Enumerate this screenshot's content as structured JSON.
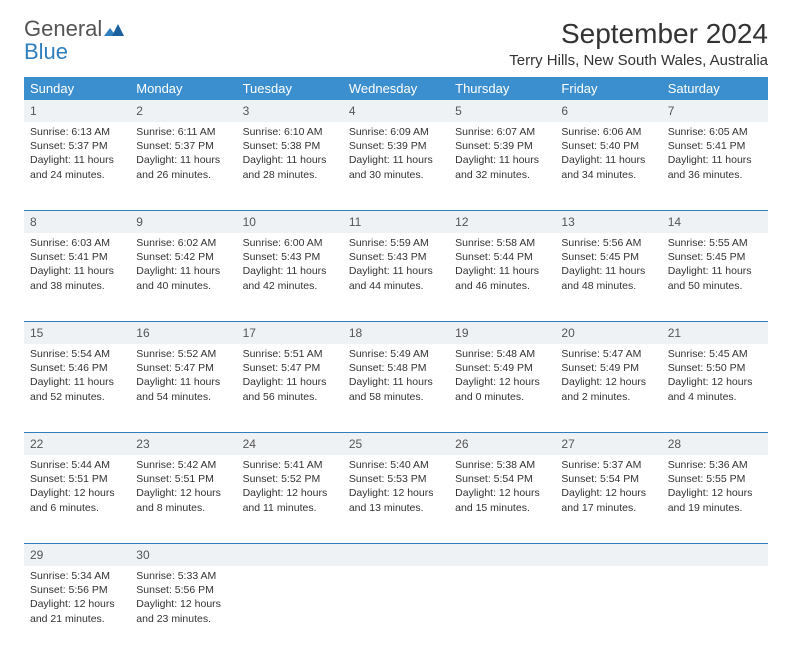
{
  "brand": {
    "name1": "General",
    "name2": "Blue"
  },
  "title": "September 2024",
  "location": "Terry Hills, New South Wales, Australia",
  "colors": {
    "header_bg": "#3c8fcf",
    "divider": "#2f7fbf",
    "daynum_bg": "#eef2f5",
    "text": "#333333",
    "brand_blue": "#2f7fbf"
  },
  "dayNames": [
    "Sunday",
    "Monday",
    "Tuesday",
    "Wednesday",
    "Thursday",
    "Friday",
    "Saturday"
  ],
  "weeks": [
    [
      {
        "n": "1",
        "sr": "Sunrise: 6:13 AM",
        "ss": "Sunset: 5:37 PM",
        "d1": "Daylight: 11 hours",
        "d2": "and 24 minutes."
      },
      {
        "n": "2",
        "sr": "Sunrise: 6:11 AM",
        "ss": "Sunset: 5:37 PM",
        "d1": "Daylight: 11 hours",
        "d2": "and 26 minutes."
      },
      {
        "n": "3",
        "sr": "Sunrise: 6:10 AM",
        "ss": "Sunset: 5:38 PM",
        "d1": "Daylight: 11 hours",
        "d2": "and 28 minutes."
      },
      {
        "n": "4",
        "sr": "Sunrise: 6:09 AM",
        "ss": "Sunset: 5:39 PM",
        "d1": "Daylight: 11 hours",
        "d2": "and 30 minutes."
      },
      {
        "n": "5",
        "sr": "Sunrise: 6:07 AM",
        "ss": "Sunset: 5:39 PM",
        "d1": "Daylight: 11 hours",
        "d2": "and 32 minutes."
      },
      {
        "n": "6",
        "sr": "Sunrise: 6:06 AM",
        "ss": "Sunset: 5:40 PM",
        "d1": "Daylight: 11 hours",
        "d2": "and 34 minutes."
      },
      {
        "n": "7",
        "sr": "Sunrise: 6:05 AM",
        "ss": "Sunset: 5:41 PM",
        "d1": "Daylight: 11 hours",
        "d2": "and 36 minutes."
      }
    ],
    [
      {
        "n": "8",
        "sr": "Sunrise: 6:03 AM",
        "ss": "Sunset: 5:41 PM",
        "d1": "Daylight: 11 hours",
        "d2": "and 38 minutes."
      },
      {
        "n": "9",
        "sr": "Sunrise: 6:02 AM",
        "ss": "Sunset: 5:42 PM",
        "d1": "Daylight: 11 hours",
        "d2": "and 40 minutes."
      },
      {
        "n": "10",
        "sr": "Sunrise: 6:00 AM",
        "ss": "Sunset: 5:43 PM",
        "d1": "Daylight: 11 hours",
        "d2": "and 42 minutes."
      },
      {
        "n": "11",
        "sr": "Sunrise: 5:59 AM",
        "ss": "Sunset: 5:43 PM",
        "d1": "Daylight: 11 hours",
        "d2": "and 44 minutes."
      },
      {
        "n": "12",
        "sr": "Sunrise: 5:58 AM",
        "ss": "Sunset: 5:44 PM",
        "d1": "Daylight: 11 hours",
        "d2": "and 46 minutes."
      },
      {
        "n": "13",
        "sr": "Sunrise: 5:56 AM",
        "ss": "Sunset: 5:45 PM",
        "d1": "Daylight: 11 hours",
        "d2": "and 48 minutes."
      },
      {
        "n": "14",
        "sr": "Sunrise: 5:55 AM",
        "ss": "Sunset: 5:45 PM",
        "d1": "Daylight: 11 hours",
        "d2": "and 50 minutes."
      }
    ],
    [
      {
        "n": "15",
        "sr": "Sunrise: 5:54 AM",
        "ss": "Sunset: 5:46 PM",
        "d1": "Daylight: 11 hours",
        "d2": "and 52 minutes."
      },
      {
        "n": "16",
        "sr": "Sunrise: 5:52 AM",
        "ss": "Sunset: 5:47 PM",
        "d1": "Daylight: 11 hours",
        "d2": "and 54 minutes."
      },
      {
        "n": "17",
        "sr": "Sunrise: 5:51 AM",
        "ss": "Sunset: 5:47 PM",
        "d1": "Daylight: 11 hours",
        "d2": "and 56 minutes."
      },
      {
        "n": "18",
        "sr": "Sunrise: 5:49 AM",
        "ss": "Sunset: 5:48 PM",
        "d1": "Daylight: 11 hours",
        "d2": "and 58 minutes."
      },
      {
        "n": "19",
        "sr": "Sunrise: 5:48 AM",
        "ss": "Sunset: 5:49 PM",
        "d1": "Daylight: 12 hours",
        "d2": "and 0 minutes."
      },
      {
        "n": "20",
        "sr": "Sunrise: 5:47 AM",
        "ss": "Sunset: 5:49 PM",
        "d1": "Daylight: 12 hours",
        "d2": "and 2 minutes."
      },
      {
        "n": "21",
        "sr": "Sunrise: 5:45 AM",
        "ss": "Sunset: 5:50 PM",
        "d1": "Daylight: 12 hours",
        "d2": "and 4 minutes."
      }
    ],
    [
      {
        "n": "22",
        "sr": "Sunrise: 5:44 AM",
        "ss": "Sunset: 5:51 PM",
        "d1": "Daylight: 12 hours",
        "d2": "and 6 minutes."
      },
      {
        "n": "23",
        "sr": "Sunrise: 5:42 AM",
        "ss": "Sunset: 5:51 PM",
        "d1": "Daylight: 12 hours",
        "d2": "and 8 minutes."
      },
      {
        "n": "24",
        "sr": "Sunrise: 5:41 AM",
        "ss": "Sunset: 5:52 PM",
        "d1": "Daylight: 12 hours",
        "d2": "and 11 minutes."
      },
      {
        "n": "25",
        "sr": "Sunrise: 5:40 AM",
        "ss": "Sunset: 5:53 PM",
        "d1": "Daylight: 12 hours",
        "d2": "and 13 minutes."
      },
      {
        "n": "26",
        "sr": "Sunrise: 5:38 AM",
        "ss": "Sunset: 5:54 PM",
        "d1": "Daylight: 12 hours",
        "d2": "and 15 minutes."
      },
      {
        "n": "27",
        "sr": "Sunrise: 5:37 AM",
        "ss": "Sunset: 5:54 PM",
        "d1": "Daylight: 12 hours",
        "d2": "and 17 minutes."
      },
      {
        "n": "28",
        "sr": "Sunrise: 5:36 AM",
        "ss": "Sunset: 5:55 PM",
        "d1": "Daylight: 12 hours",
        "d2": "and 19 minutes."
      }
    ],
    [
      {
        "n": "29",
        "sr": "Sunrise: 5:34 AM",
        "ss": "Sunset: 5:56 PM",
        "d1": "Daylight: 12 hours",
        "d2": "and 21 minutes."
      },
      {
        "n": "30",
        "sr": "Sunrise: 5:33 AM",
        "ss": "Sunset: 5:56 PM",
        "d1": "Daylight: 12 hours",
        "d2": "and 23 minutes."
      },
      null,
      null,
      null,
      null,
      null
    ]
  ]
}
